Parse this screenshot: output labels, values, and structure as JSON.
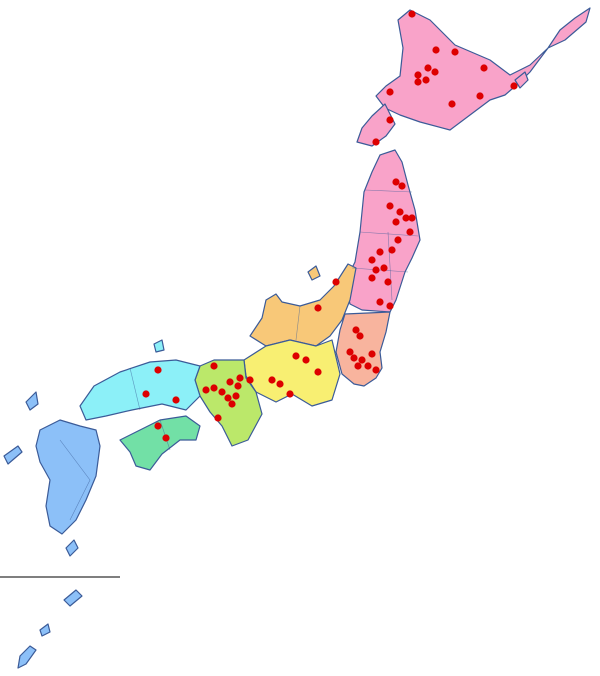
{
  "map": {
    "region_colors": {
      "hokkaido": "#f9a3c9",
      "tohoku": "#f9a3c9",
      "kanto": "#f8b49e",
      "chubu": "#f8c878",
      "tokai": "#f8ef72",
      "kinki": "#bbe86a",
      "chugoku": "#8cf0f8",
      "shikoku": "#72e0a6",
      "kyushu": "#8cc0f8",
      "okinawa": "#8cc0f8"
    },
    "outline_color": "#3b5b98",
    "marker_color": "#dd0000"
  }
}
